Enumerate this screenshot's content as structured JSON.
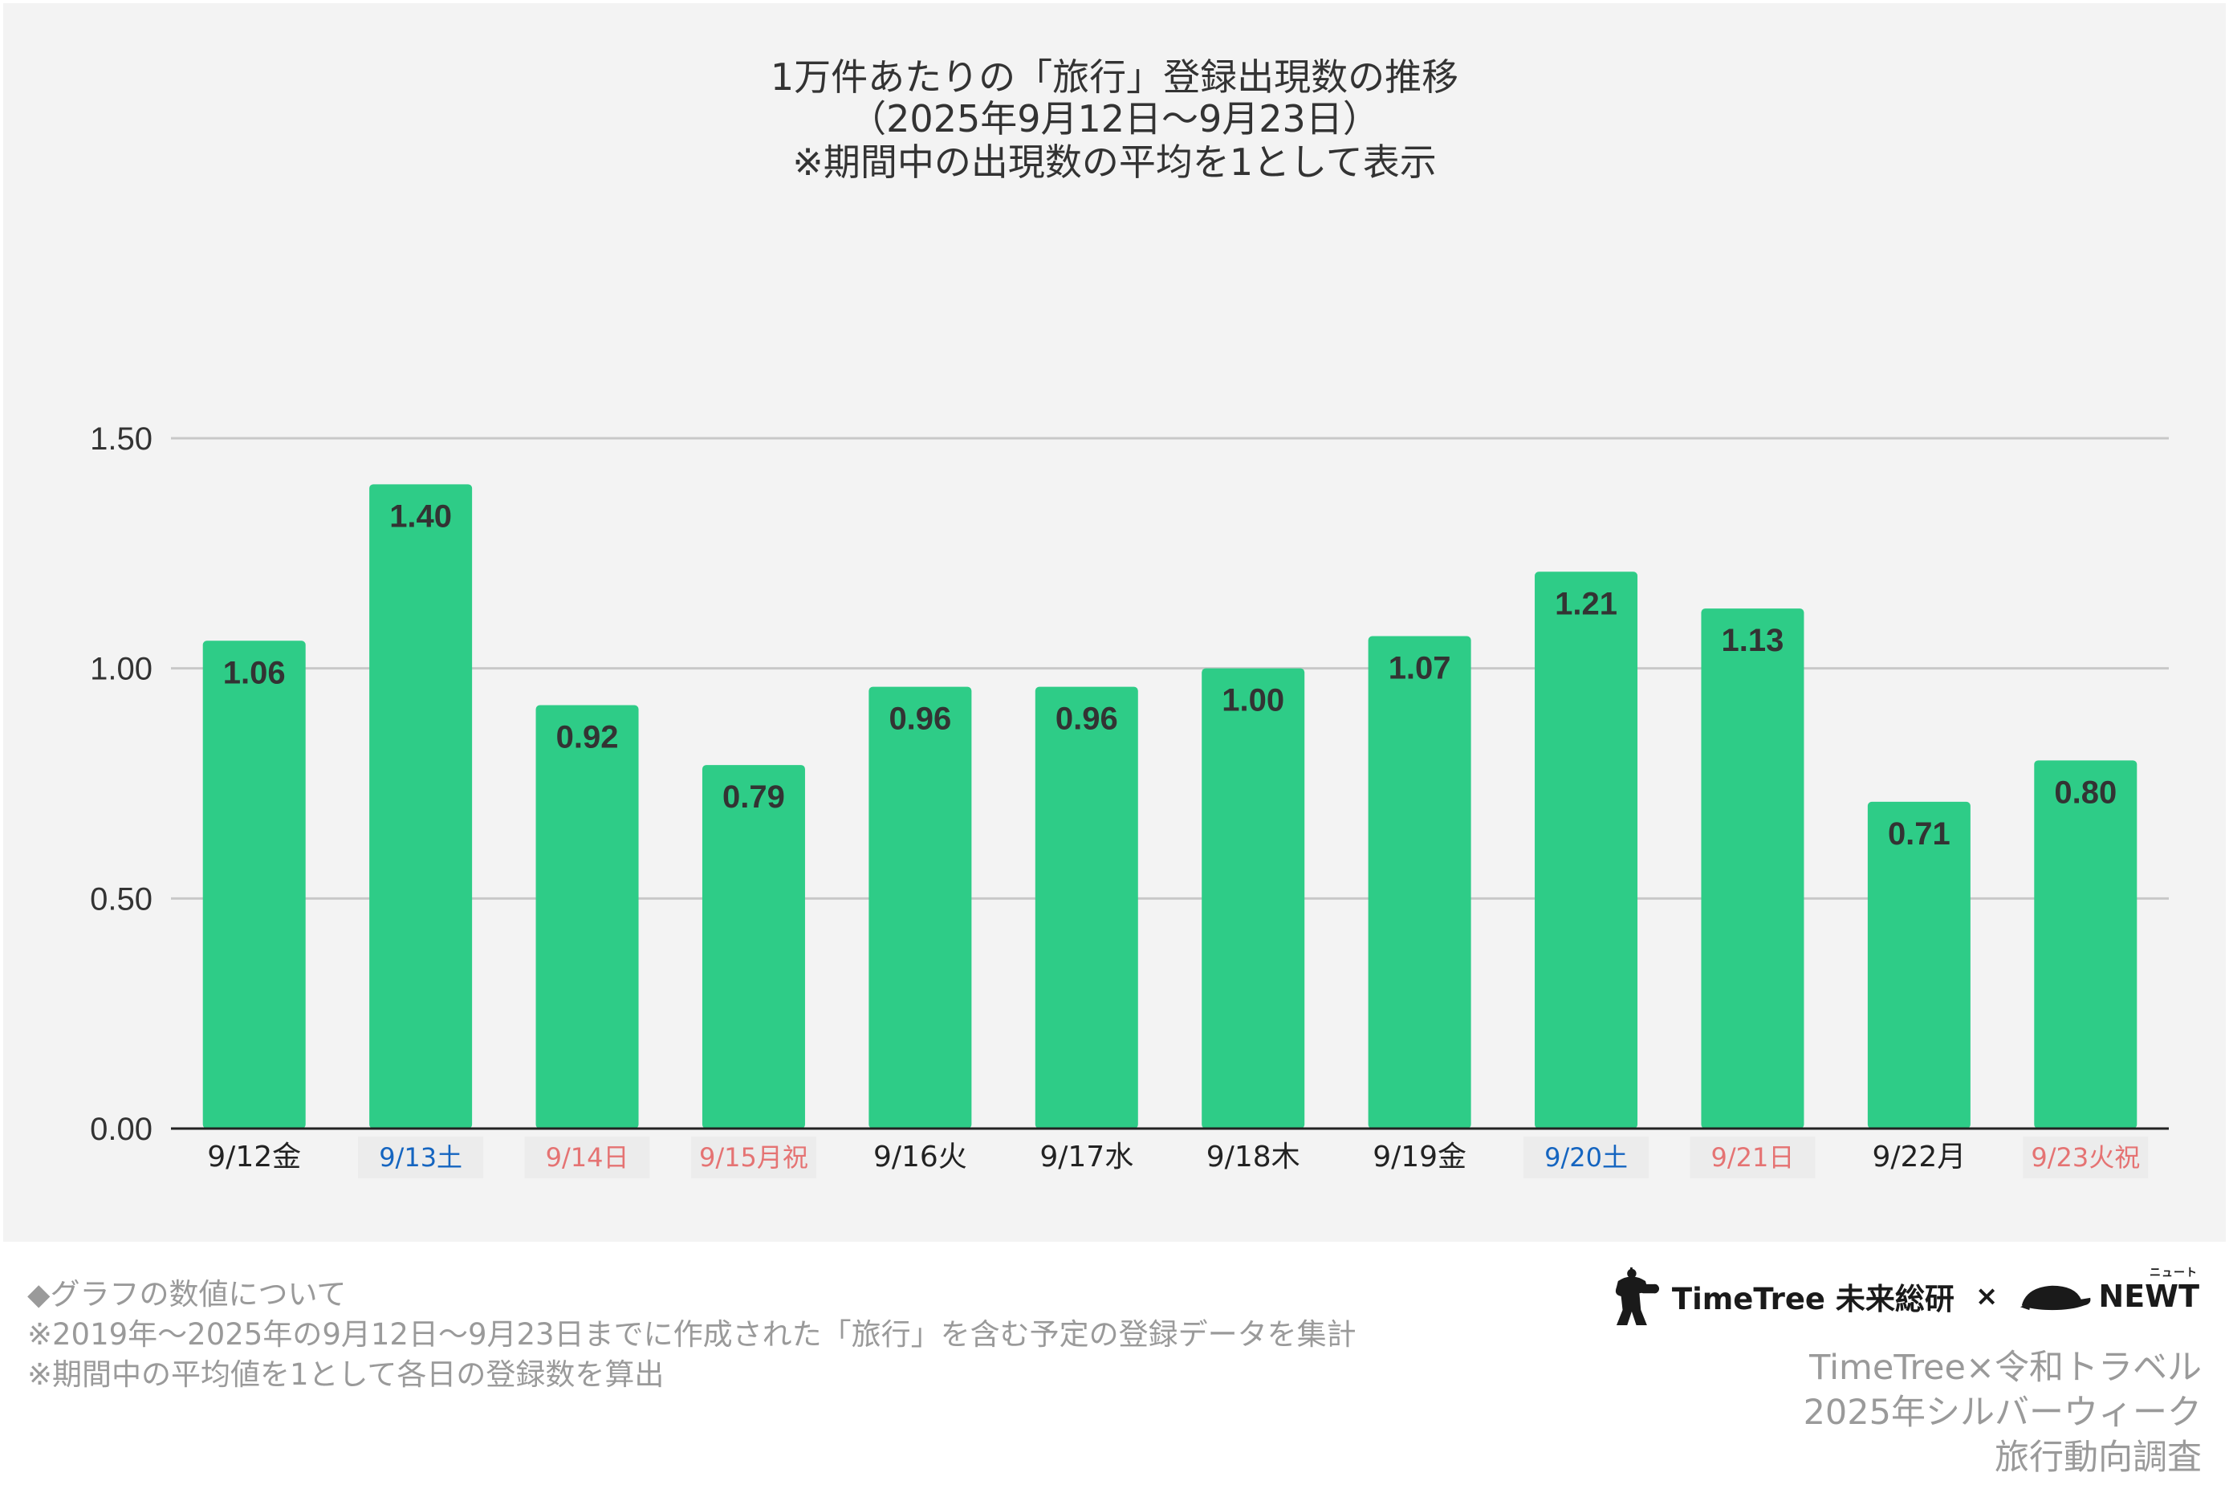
{
  "chart_data": {
    "type": "bar",
    "title_lines": [
      "1万件あたりの「旅行」登録出現数の推移",
      "（2025年9月12日〜9月23日）",
      "※期間中の出現数の平均を1として表示"
    ],
    "categories": [
      "9/12金",
      "9/13土",
      "9/14日",
      "9/15月祝",
      "9/16火",
      "9/17水",
      "9/18木",
      "9/19金",
      "9/20土",
      "9/21日",
      "9/22月",
      "9/23火祝"
    ],
    "category_colors": [
      "#222222",
      "#1565c0",
      "#e57373",
      "#e57373",
      "#222222",
      "#222222",
      "#222222",
      "#222222",
      "#1565c0",
      "#e57373",
      "#222222",
      "#e57373"
    ],
    "values": [
      1.06,
      1.4,
      0.92,
      0.79,
      0.96,
      0.96,
      1.0,
      1.07,
      1.21,
      1.13,
      0.71,
      0.8
    ],
    "value_labels": [
      "1.06",
      "1.40",
      "0.92",
      "0.79",
      "0.96",
      "0.96",
      "1.00",
      "1.07",
      "1.21",
      "1.13",
      "0.71",
      "0.80"
    ],
    "ylim": [
      0,
      1.5
    ],
    "yticks": [
      "0.00",
      "0.50",
      "1.00",
      "1.50"
    ],
    "ytick_values": [
      0,
      0.5,
      1.0,
      1.5
    ],
    "grid": true,
    "bar_color": "#2ecc87"
  },
  "notes": {
    "heading": "◆グラフの数値について",
    "line1": "※2019年〜2025年の9月12日〜9月23日までに作成された「旅行」を含む予定の登録データを集計",
    "line2": "※期間中の平均値を1として各日の登録数を算出"
  },
  "logos": {
    "timetree": "TimeTree 未来総研",
    "times": "×",
    "newt": "NEWT",
    "newt_ruby": "ニュート"
  },
  "credit": {
    "line1": "TimeTree×令和トラベル",
    "line2": "2025年シルバーウィーク",
    "line3": "旅行動向調査"
  }
}
